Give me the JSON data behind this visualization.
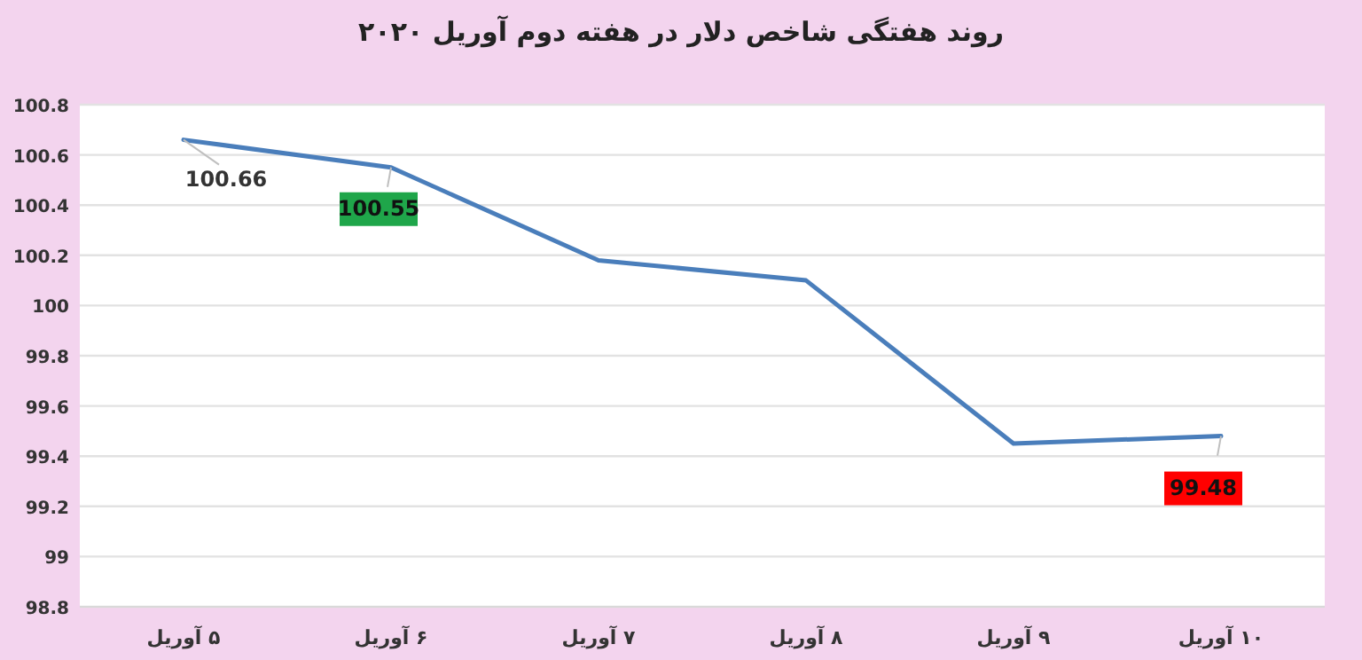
{
  "chart_data": {
    "type": "line",
    "title": "روند هفتگی شاخص دلار در هفته دوم آوریل ۲۰۲۰",
    "categories": [
      "۵ آوریل",
      "۶ آوریل",
      "۷ آوریل",
      "۸ آوریل",
      "۹ آوریل",
      "۱۰ آوریل"
    ],
    "series": [
      {
        "color": "#4a7ebb",
        "values": [
          100.66,
          100.55,
          100.18,
          100.1,
          99.45,
          99.48
        ],
        "value_labels": [
          "100.66",
          "100.55",
          null,
          null,
          null,
          "99.48"
        ]
      }
    ],
    "ylim": [
      98.8,
      100.8
    ],
    "yticks": [
      98.8,
      99,
      99.2,
      99.4,
      99.6,
      99.8,
      100,
      100.2,
      100.4,
      100.6,
      100.8
    ],
    "grid": "y",
    "marker": "none",
    "line_style": "solid"
  }
}
